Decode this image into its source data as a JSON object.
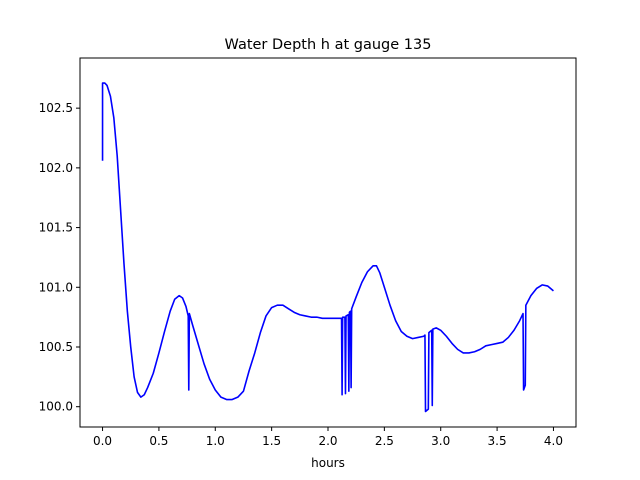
{
  "chart_data": {
    "type": "line",
    "title": "Water Depth h at gauge 135",
    "xlabel": "hours",
    "ylabel": "",
    "xlim": [
      -0.2,
      4.2
    ],
    "ylim": [
      99.83,
      102.92
    ],
    "x_ticks": [
      0.0,
      0.5,
      1.0,
      1.5,
      2.0,
      2.5,
      3.0,
      3.5,
      4.0
    ],
    "x_tick_labels": [
      "0.0",
      "0.5",
      "1.0",
      "1.5",
      "2.0",
      "2.5",
      "3.0",
      "3.5",
      "4.0"
    ],
    "y_ticks": [
      100.0,
      100.5,
      101.0,
      101.5,
      102.0,
      102.5
    ],
    "y_tick_labels": [
      "100.0",
      "100.5",
      "101.0",
      "101.5",
      "102.0",
      "102.5"
    ],
    "grid": false,
    "legend": "none",
    "series": [
      {
        "color": "#0000ff",
        "points": [
          [
            0.0,
            102.06
          ],
          [
            0.0,
            102.71
          ],
          [
            0.02,
            102.71
          ],
          [
            0.04,
            102.69
          ],
          [
            0.07,
            102.6
          ],
          [
            0.1,
            102.42
          ],
          [
            0.13,
            102.1
          ],
          [
            0.16,
            101.65
          ],
          [
            0.19,
            101.2
          ],
          [
            0.22,
            100.8
          ],
          [
            0.25,
            100.5
          ],
          [
            0.28,
            100.25
          ],
          [
            0.31,
            100.12
          ],
          [
            0.34,
            100.08
          ],
          [
            0.37,
            100.1
          ],
          [
            0.4,
            100.16
          ],
          [
            0.45,
            100.28
          ],
          [
            0.5,
            100.45
          ],
          [
            0.55,
            100.63
          ],
          [
            0.6,
            100.8
          ],
          [
            0.64,
            100.9
          ],
          [
            0.68,
            100.93
          ],
          [
            0.71,
            100.91
          ],
          [
            0.74,
            100.84
          ],
          [
            0.76,
            100.76
          ],
          [
            0.765,
            100.14
          ],
          [
            0.77,
            100.78
          ],
          [
            0.8,
            100.68
          ],
          [
            0.85,
            100.52
          ],
          [
            0.9,
            100.36
          ],
          [
            0.95,
            100.23
          ],
          [
            1.0,
            100.14
          ],
          [
            1.05,
            100.08
          ],
          [
            1.1,
            100.06
          ],
          [
            1.15,
            100.06
          ],
          [
            1.2,
            100.08
          ],
          [
            1.25,
            100.13
          ],
          [
            1.3,
            100.3
          ],
          [
            1.35,
            100.45
          ],
          [
            1.4,
            100.62
          ],
          [
            1.45,
            100.76
          ],
          [
            1.5,
            100.83
          ],
          [
            1.55,
            100.85
          ],
          [
            1.6,
            100.85
          ],
          [
            1.65,
            100.82
          ],
          [
            1.7,
            100.79
          ],
          [
            1.75,
            100.77
          ],
          [
            1.8,
            100.76
          ],
          [
            1.85,
            100.75
          ],
          [
            1.9,
            100.75
          ],
          [
            1.95,
            100.74
          ],
          [
            2.0,
            100.74
          ],
          [
            2.05,
            100.74
          ],
          [
            2.1,
            100.74
          ],
          [
            2.12,
            100.74
          ],
          [
            2.125,
            100.1
          ],
          [
            2.13,
            100.75
          ],
          [
            2.15,
            100.75
          ],
          [
            2.155,
            100.11
          ],
          [
            2.16,
            100.76
          ],
          [
            2.18,
            100.77
          ],
          [
            2.185,
            100.13
          ],
          [
            2.19,
            100.79
          ],
          [
            2.2,
            100.8
          ],
          [
            2.205,
            100.16
          ],
          [
            2.21,
            100.82
          ],
          [
            2.25,
            100.92
          ],
          [
            2.3,
            101.04
          ],
          [
            2.35,
            101.13
          ],
          [
            2.4,
            101.18
          ],
          [
            2.43,
            101.18
          ],
          [
            2.46,
            101.12
          ],
          [
            2.5,
            101.0
          ],
          [
            2.55,
            100.85
          ],
          [
            2.6,
            100.72
          ],
          [
            2.65,
            100.63
          ],
          [
            2.7,
            100.59
          ],
          [
            2.75,
            100.57
          ],
          [
            2.8,
            100.58
          ],
          [
            2.85,
            100.59
          ],
          [
            2.86,
            100.6
          ],
          [
            2.865,
            99.96
          ],
          [
            2.89,
            99.98
          ],
          [
            2.895,
            100.62
          ],
          [
            2.92,
            100.64
          ],
          [
            2.925,
            100.01
          ],
          [
            2.93,
            100.65
          ],
          [
            2.96,
            100.66
          ],
          [
            3.0,
            100.64
          ],
          [
            3.05,
            100.59
          ],
          [
            3.1,
            100.53
          ],
          [
            3.15,
            100.48
          ],
          [
            3.2,
            100.45
          ],
          [
            3.25,
            100.45
          ],
          [
            3.3,
            100.46
          ],
          [
            3.35,
            100.48
          ],
          [
            3.4,
            100.51
          ],
          [
            3.45,
            100.52
          ],
          [
            3.5,
            100.53
          ],
          [
            3.55,
            100.54
          ],
          [
            3.6,
            100.58
          ],
          [
            3.65,
            100.64
          ],
          [
            3.7,
            100.72
          ],
          [
            3.73,
            100.78
          ],
          [
            3.735,
            100.14
          ],
          [
            3.75,
            100.18
          ],
          [
            3.755,
            100.85
          ],
          [
            3.8,
            100.93
          ],
          [
            3.85,
            100.99
          ],
          [
            3.9,
            101.02
          ],
          [
            3.95,
            101.01
          ],
          [
            4.0,
            100.97
          ]
        ]
      }
    ]
  }
}
